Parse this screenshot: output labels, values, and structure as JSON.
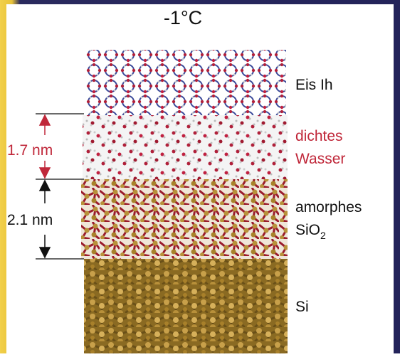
{
  "title": "-1°C",
  "layers": [
    {
      "label_lines": [
        "Eis Ih"
      ]
    },
    {
      "label_lines": [
        "dichtes",
        "Wasser"
      ]
    },
    {
      "label_lines": [
        "amorphes",
        {
          "text": "SiO",
          "subscript": "2"
        }
      ]
    },
    {
      "label_lines": [
        "Si"
      ]
    }
  ],
  "dimensions": [
    {
      "label": "1.7 nm"
    },
    {
      "label": "2.1 nm"
    }
  ]
}
